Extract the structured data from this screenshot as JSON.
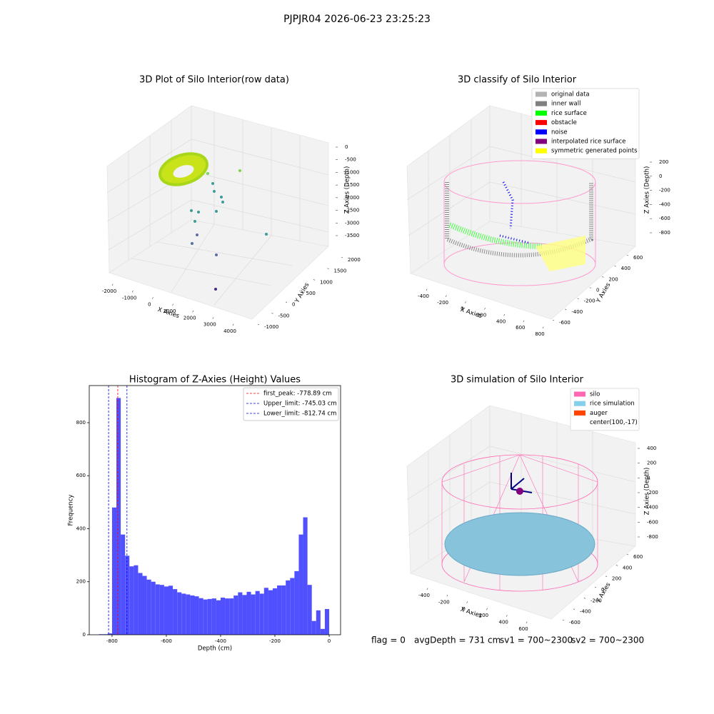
{
  "figure": {
    "title": "PJPJR04 2026-06-23 23:25:23",
    "notes": [
      "flag = 0",
      "avgDepth = 731 cm",
      "sv1 = 700~2300",
      "sv2 = 700~2300"
    ]
  },
  "chart_data": [
    {
      "type": "scatter3d",
      "title": "3D Plot of Silo Interior(row data)",
      "xlabel": "X Axies",
      "ylabel": "Y Axies",
      "zlabel": "Z Axies (Depth)",
      "xlim": [
        -2000,
        4000
      ],
      "xticks": [
        -2000,
        -1000,
        0,
        1000,
        2000,
        3000,
        4000
      ],
      "ylim": [
        -1000,
        2000
      ],
      "yticks": [
        -1000,
        -500,
        0,
        500,
        1000,
        1500,
        2000
      ],
      "zlim": [
        0,
        -3500
      ],
      "zticks": [
        0,
        -500,
        -1000,
        -1500,
        -2000,
        -2500,
        -3000,
        -3500
      ]
    },
    {
      "type": "scatter3d",
      "title": "3D classify of Silo Interior",
      "xlabel": "X Axies",
      "ylabel": "Y Axies",
      "zlabel": "Z Axies (Depth)",
      "xlim": [
        -400,
        800
      ],
      "xticks": [
        -400,
        -200,
        0,
        200,
        400,
        600,
        800
      ],
      "ylim": [
        -600,
        600
      ],
      "yticks": [
        -600,
        -400,
        -200,
        0,
        200,
        400,
        600
      ],
      "zlim": [
        200,
        -800
      ],
      "zticks": [
        200,
        0,
        -200,
        -400,
        -600,
        -800
      ],
      "series": [
        {
          "name": "original data",
          "color": "#b3b3b3"
        },
        {
          "name": "inner wall",
          "color": "#808080"
        },
        {
          "name": "rice surface",
          "color": "#00ff00"
        },
        {
          "name": "obstacle",
          "color": "#ff0000"
        },
        {
          "name": "noise",
          "color": "#0000ff"
        },
        {
          "name": "interpolated rice surface",
          "color": "#800080"
        },
        {
          "name": "symmetric generated points",
          "color": "#ffff00"
        }
      ]
    },
    {
      "type": "histogram",
      "title": "Histogram of Z-Axies (Height) Values",
      "xlabel": "Depth (cm)",
      "ylabel": "Frequency",
      "color": "#5050ff",
      "bins": [
        -848,
        -832,
        -816,
        -800,
        -784,
        -768,
        -752,
        -736,
        -720,
        -704,
        -688,
        -672,
        -656,
        -640,
        -624,
        -608,
        -592,
        -576,
        -560,
        -544,
        -528,
        -512,
        -496,
        -480,
        -464,
        -448,
        -432,
        -416,
        -400,
        -384,
        -368,
        -352,
        -336,
        -320,
        -304,
        -288,
        -272,
        -256,
        -240,
        -224,
        -208,
        -192,
        -176,
        -160,
        -144,
        -128,
        -112,
        -96,
        -80,
        -64,
        -48,
        -32,
        -16,
        0
      ],
      "counts": [
        2,
        2,
        5,
        480,
        893,
        378,
        298,
        258,
        262,
        233,
        222,
        208,
        200,
        190,
        188,
        182,
        185,
        172,
        160,
        155,
        152,
        148,
        145,
        138,
        133,
        135,
        137,
        130,
        140,
        137,
        137,
        148,
        160,
        150,
        162,
        152,
        165,
        155,
        177,
        168,
        175,
        186,
        186,
        205,
        214,
        240,
        378,
        443,
        188,
        52,
        92,
        22,
        97
      ],
      "xlim": [
        -884,
        42
      ],
      "xticks": [
        -800,
        -600,
        -400,
        -200,
        0
      ],
      "ylim": [
        0,
        940
      ],
      "yticks": [
        0,
        200,
        400,
        600,
        800
      ],
      "lines": [
        {
          "label": "first_peak: -778.89 cm",
          "value": -778.89,
          "color": "#ff0000"
        },
        {
          "label": "Upper_limit: -745.03 cm",
          "value": -745.03,
          "color": "#0000ff"
        },
        {
          "label": "Lower_limit: -812.74 cm",
          "value": -812.74,
          "color": "#0000ff"
        }
      ]
    },
    {
      "type": "surface3d",
      "title": "3D simulation of Silo Interior",
      "xlabel": "X Axies",
      "ylabel": "Y Axies",
      "zlabel": "Z Axies (Depth)",
      "xlim": [
        -400,
        600
      ],
      "xticks": [
        -400,
        -200,
        0,
        200,
        400,
        600
      ],
      "ylim": [
        -600,
        600
      ],
      "yticks": [
        -600,
        -400,
        -200,
        0,
        200,
        400,
        600
      ],
      "zlim": [
        400,
        -800
      ],
      "zticks": [
        400,
        200,
        0,
        -200,
        -400,
        -600,
        -800
      ],
      "series": [
        {
          "name": "silo",
          "color": "#ff69b4"
        },
        {
          "name": "rice simulation",
          "color": "#87ceeb"
        },
        {
          "name": "auger",
          "color": "#ff4500"
        },
        {
          "name": "center(100,-17)"
        }
      ]
    }
  ]
}
